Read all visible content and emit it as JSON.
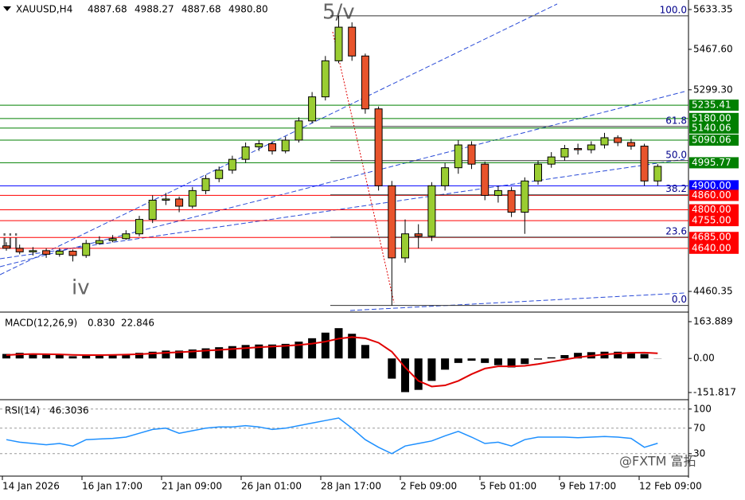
{
  "chart_data": [
    {
      "type": "candlestick",
      "title": "XAUUSD,H4",
      "header_ohlc": [
        4887.68,
        4988.27,
        4887.68,
        {
          "value": 4980.8,
          "label": "4980.80"
        }
      ],
      "open": [
        4650,
        4640,
        4625,
        4630,
        4615,
        4628,
        4610,
        4660,
        4672,
        4680,
        4700,
        4760,
        4840,
        4845,
        4815,
        4880,
        4930,
        4965,
        5010,
        5062,
        5075,
        5045,
        5090,
        5170,
        5270,
        5420,
        5560,
        5440,
        5220,
        4900,
        4600,
        4700,
        4690,
        4900,
        4975,
        5070,
        4990,
        4860,
        4880,
        4790,
        4920,
        4990,
        5020,
        5055,
        5050,
        5070,
        5100,
        5080,
        5065,
        4920
      ],
      "high": [
        4665,
        4655,
        4645,
        4640,
        4640,
        4635,
        4675,
        4690,
        4695,
        4715,
        4775,
        4860,
        4870,
        4855,
        4895,
        4945,
        4980,
        5025,
        5080,
        5090,
        5085,
        5105,
        5185,
        5290,
        5440,
        5607,
        5580,
        5450,
        5230,
        4920,
        4760,
        4740,
        4915,
        4995,
        5090,
        5085,
        5000,
        4900,
        4895,
        4935,
        5005,
        5040,
        5070,
        5075,
        5085,
        5120,
        5110,
        5095,
        5075,
        4990
      ],
      "low": [
        4630,
        4615,
        4610,
        4600,
        4605,
        4585,
        4600,
        4655,
        4665,
        4675,
        4690,
        4745,
        4820,
        4790,
        4805,
        4865,
        4915,
        4950,
        4995,
        5045,
        5030,
        5035,
        5080,
        5160,
        5255,
        5410,
        5420,
        5200,
        4880,
        4402,
        4580,
        4640,
        4670,
        4880,
        4950,
        4970,
        4840,
        4830,
        4770,
        4700,
        4905,
        4975,
        5005,
        5030,
        5035,
        5055,
        5065,
        5050,
        4900,
        4900
      ],
      "close": [
        4640,
        4625,
        4630,
        4615,
        4628,
        4610,
        4660,
        4672,
        4680,
        4700,
        4760,
        4840,
        4845,
        4815,
        4880,
        4930,
        4965,
        5010,
        5062,
        5075,
        5045,
        5090,
        5170,
        5270,
        5420,
        5560,
        5440,
        5220,
        4900,
        4600,
        4700,
        4690,
        4900,
        4975,
        5070,
        4990,
        4860,
        4880,
        4790,
        4920,
        4990,
        5020,
        5055,
        5050,
        5070,
        5100,
        5080,
        5065,
        4920,
        4980.8
      ],
      "up_color": "#9acd32",
      "down_color": "#e8542c",
      "ylim": [
        4381,
        5673
      ],
      "yticks": [
        5633.35,
        {
          "value": 5467.6,
          "label": "5467.60"
        },
        {
          "value": 5299.3,
          "label": "5299.30"
        },
        4460.35
      ],
      "levels": [
        {
          "value": 5235.41,
          "label": "5235.41",
          "color": "#008000"
        },
        {
          "value": 5180,
          "label": "5180.00",
          "color": "#008000"
        },
        {
          "value": 5140.06,
          "label": "5140.06",
          "color": "#008000"
        },
        {
          "value": 5090.06,
          "label": "5090.06",
          "color": "#008000"
        },
        {
          "value": 4995.77,
          "label": "4995.77",
          "color": "#008000"
        },
        {
          "value": 4900,
          "label": "4900.00",
          "color": "#0000ff"
        },
        {
          "value": 4860,
          "label": "4860.00",
          "color": "#ff0000"
        },
        {
          "value": 4800,
          "label": "4800.00",
          "color": "#ff0000"
        },
        {
          "value": 4755,
          "label": "4755.00",
          "color": "#ff0000"
        },
        {
          "value": 4685,
          "label": "4685.00",
          "color": "#ff0000"
        },
        {
          "value": 4640,
          "label": "4640.00",
          "color": "#ff0000"
        }
      ],
      "fib_range": [
        4402,
        5607
      ],
      "fib_levels": [
        {
          "value": 100,
          "label": "100.0"
        },
        61.8,
        {
          "value": 50,
          "label": "50.0"
        },
        38.2,
        23.6,
        {
          "value": 0,
          "label": "0.0"
        }
      ],
      "annotations": [
        "5/v",
        "iii",
        "iv"
      ],
      "x_labels": [
        "14 Jan 2026",
        "16 Jan 17:00",
        "21 Jan 09:00",
        "26 Jan 01:00",
        "28 Jan 17:00",
        "2 Feb 09:00",
        "5 Feb 01:00",
        "9 Feb 17:00",
        "12 Feb 09:00"
      ]
    },
    {
      "type": "macd",
      "title": "MACD(12,26,9)",
      "readouts": [
        {
          "value": 0.83,
          "label": "0.830"
        },
        22.846
      ],
      "values": [
        20,
        25,
        22,
        18,
        15,
        10,
        12,
        15,
        18,
        20,
        25,
        30,
        35,
        35,
        40,
        45,
        50,
        55,
        60,
        62,
        62,
        65,
        75,
        90,
        115,
        135,
        110,
        60,
        0,
        -90,
        -150,
        -140,
        -100,
        -50,
        -20,
        -10,
        -20,
        -30,
        -40,
        -25,
        -5,
        5,
        15,
        25,
        28,
        30,
        30,
        28,
        20,
        0.83
      ],
      "signal": [
        15,
        18,
        20,
        19,
        18,
        16,
        15,
        15,
        16,
        17,
        19,
        22,
        25,
        28,
        31,
        35,
        38,
        42,
        46,
        50,
        53,
        56,
        60,
        66,
        75,
        88,
        95,
        90,
        70,
        30,
        -40,
        -100,
        -125,
        -120,
        -100,
        -70,
        -45,
        -35,
        -35,
        -33,
        -25,
        -15,
        -5,
        5,
        12,
        18,
        22,
        25,
        26,
        22.846
      ],
      "color": "#000000",
      "signal_color": "#e00000",
      "ylim": [
        -176.6,
        199.4
      ],
      "yticks": [
        163.889,
        {
          "value": 0,
          "label": "0.00"
        },
        -151.817
      ]
    },
    {
      "type": "line",
      "title": "RSI(14)",
      "readouts": [
        46.3036
      ],
      "values": [
        52,
        48,
        46,
        44,
        46,
        42,
        52,
        53,
        54,
        56,
        62,
        68,
        70,
        62,
        66,
        70,
        72,
        72,
        74,
        72,
        68,
        70,
        74,
        78,
        82,
        86,
        70,
        52,
        40,
        30,
        42,
        46,
        50,
        58,
        65,
        56,
        46,
        48,
        42,
        52,
        56,
        56,
        56,
        55,
        56,
        57,
        56,
        54,
        40,
        46.3036
      ],
      "color": "#1e90ff",
      "ylim": [
        -4,
        111
      ],
      "yticks": [
        100,
        70,
        30
      ]
    }
  ],
  "watermark": "@FXTM 富拓"
}
